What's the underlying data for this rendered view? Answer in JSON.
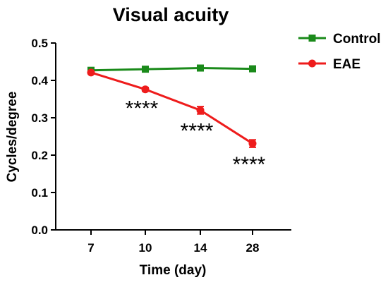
{
  "chart_data": {
    "type": "line",
    "title": "Visual acuity",
    "xlabel": "Time (day)",
    "ylabel": "Cycles/degree",
    "categories": [
      "7",
      "10",
      "14",
      "28"
    ],
    "ylim": [
      0,
      0.5
    ],
    "yticks": [
      "0.0",
      "0.1",
      "0.2",
      "0.3",
      "0.4",
      "0.5"
    ],
    "yticks_values": [
      0,
      0.1,
      0.2,
      0.3,
      0.4,
      0.5
    ],
    "grid": false,
    "legend_position": "top-right",
    "series": [
      {
        "name": "Control",
        "color": "#1a8a1a",
        "marker": "square",
        "values": [
          0.427,
          0.43,
          0.433,
          0.431
        ],
        "errors": [
          0.003,
          0.003,
          0.003,
          0.003
        ]
      },
      {
        "name": "EAE",
        "color": "#ee1c1c",
        "marker": "circle",
        "values": [
          0.421,
          0.376,
          0.32,
          0.231
        ],
        "errors": [
          0.003,
          0.005,
          0.01,
          0.01
        ]
      }
    ],
    "annotations": [
      {
        "category": "10",
        "text": "****"
      },
      {
        "category": "14",
        "text": "****"
      },
      {
        "category": "28",
        "text": "****"
      }
    ]
  }
}
